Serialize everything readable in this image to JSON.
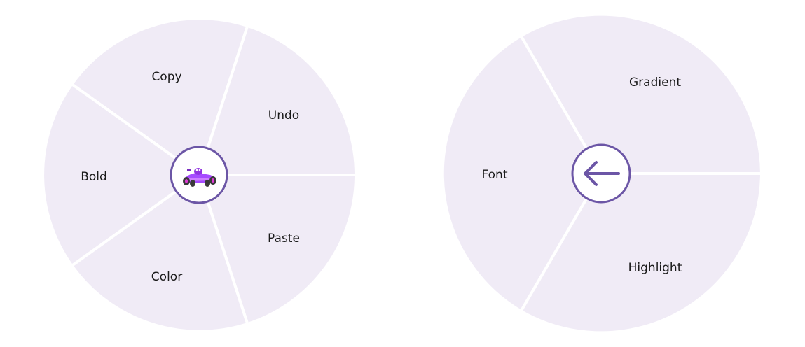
{
  "menus": [
    {
      "name": "main-menu",
      "hub": {
        "icon": "race-car-icon"
      },
      "items": [
        {
          "label": "Copy"
        },
        {
          "label": "Undo"
        },
        {
          "label": "Paste"
        },
        {
          "label": "Color"
        },
        {
          "label": "Bold"
        }
      ]
    },
    {
      "name": "color-submenu",
      "hub": {
        "icon": "back-arrow-icon"
      },
      "items": [
        {
          "label": "Gradient"
        },
        {
          "label": "Highlight"
        },
        {
          "label": "Font"
        }
      ]
    }
  ],
  "colors": {
    "segment_fill": "#f0ebf6",
    "accent": "#6c56a6"
  }
}
